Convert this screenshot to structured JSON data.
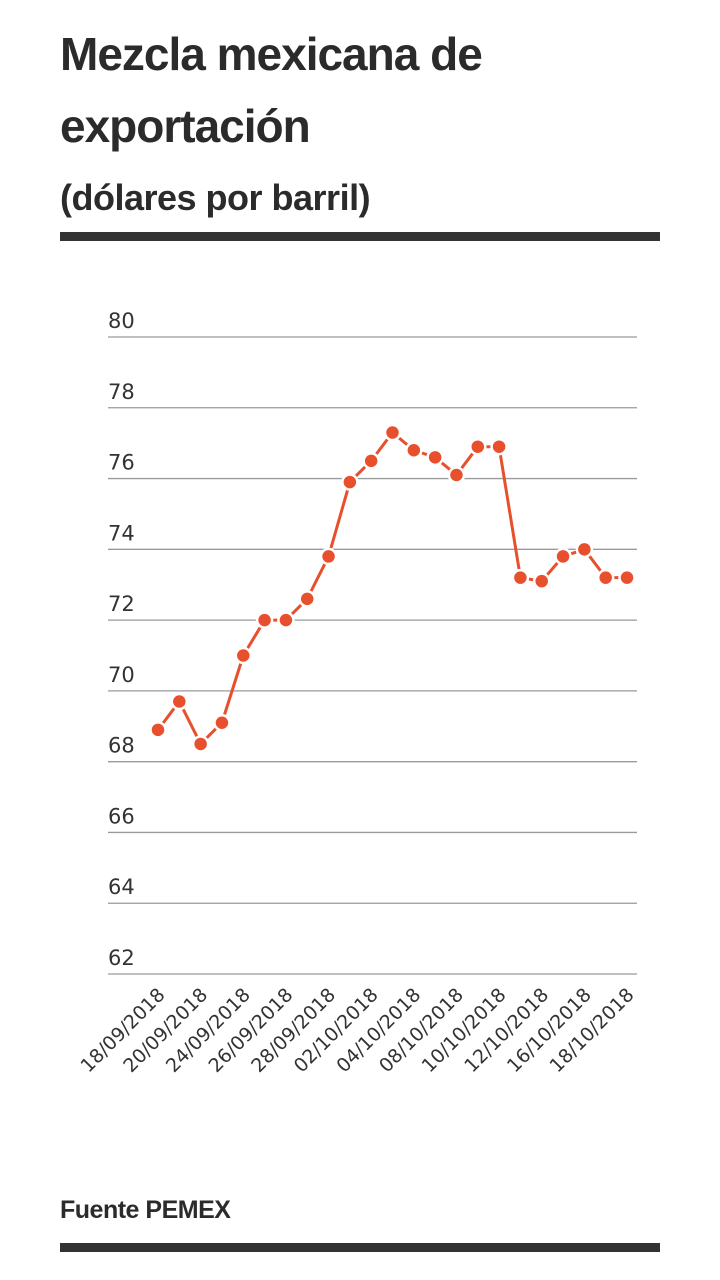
{
  "header": {
    "title": "Mezcla mexicana de exportación",
    "subtitle": "(dólares por barril)"
  },
  "footer": {
    "source": "Fuente PEMEX"
  },
  "colors": {
    "series": "#e8502d",
    "grid": "#9a9a9a",
    "rule": "#333333"
  },
  "chart_data": {
    "type": "line",
    "title": "Mezcla mexicana de exportación",
    "subtitle": "(dólares por barril)",
    "xlabel": "",
    "ylabel": "",
    "ylim": [
      62,
      80
    ],
    "yticks": [
      62,
      64,
      66,
      68,
      70,
      72,
      74,
      76,
      78,
      80
    ],
    "grid": true,
    "legend": "none",
    "x_tick_labels": [
      "18/09/2018",
      "20/09/2018",
      "24/09/2018",
      "26/09/2018",
      "28/09/2018",
      "02/10/2018",
      "04/10/2018",
      "08/10/2018",
      "10/10/2018",
      "12/10/2018",
      "16/10/2018",
      "18/10/2018"
    ],
    "x": [
      "18/09/2018",
      "19/09/2018",
      "20/09/2018",
      "21/09/2018",
      "24/09/2018",
      "25/09/2018",
      "26/09/2018",
      "27/09/2018",
      "28/09/2018",
      "01/10/2018",
      "02/10/2018",
      "03/10/2018",
      "04/10/2018",
      "05/10/2018",
      "08/10/2018",
      "09/10/2018",
      "10/10/2018",
      "11/10/2018",
      "12/10/2018",
      "15/10/2018",
      "16/10/2018",
      "17/10/2018",
      "18/10/2018"
    ],
    "series": [
      {
        "values": [
          68.9,
          69.7,
          68.5,
          69.1,
          71.0,
          72.0,
          72.0,
          72.6,
          73.8,
          75.9,
          76.5,
          77.3,
          76.8,
          76.6,
          76.1,
          76.9,
          76.9,
          73.2,
          73.1,
          73.8,
          74.0,
          73.2,
          73.2
        ]
      }
    ]
  }
}
